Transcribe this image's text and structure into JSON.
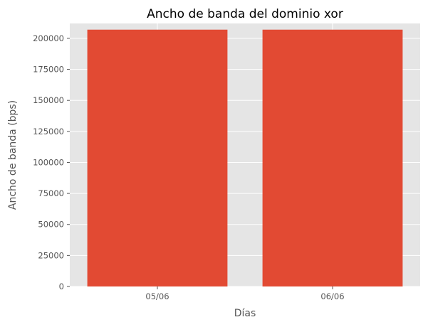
{
  "chart_data": {
    "type": "bar",
    "title": "Ancho de banda del dominio xor",
    "xlabel": "Días",
    "ylabel": "Ancho de banda (bps)",
    "categories": [
      "05/06",
      "06/06"
    ],
    "values": [
      207000,
      207000
    ],
    "ylim": [
      0,
      212000
    ],
    "yticks": [
      0,
      25000,
      50000,
      75000,
      100000,
      125000,
      150000,
      175000,
      200000
    ],
    "grid": true,
    "style": "ggplot",
    "colors": {
      "bar": "#E24A33",
      "plot_background": "#E5E5E5",
      "grid": "#FFFFFF",
      "tick_text": "#555555",
      "title_text": "#000000"
    }
  }
}
